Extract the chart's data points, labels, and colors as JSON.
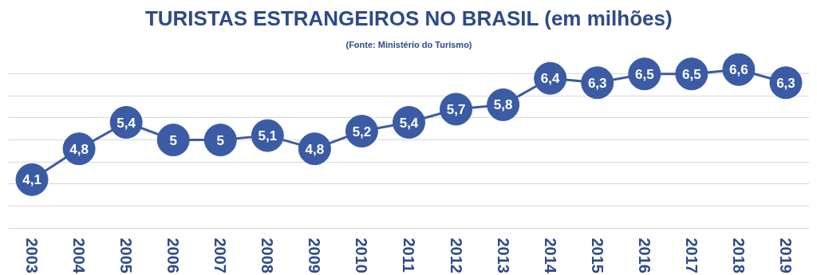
{
  "chart_data": {
    "type": "line",
    "title": "TURISTAS ESTRANGEIROS NO BRASIL (em milhões)",
    "annotations": [
      "(Fonte: Ministério do Turismo)"
    ],
    "categories": [
      "2003",
      "2004",
      "2005",
      "2006",
      "2007",
      "2008",
      "2009",
      "2010",
      "2011",
      "2012",
      "2013",
      "2014",
      "2015",
      "2016",
      "2017",
      "2018",
      "2019"
    ],
    "series": [
      {
        "color": "#3b5ba5",
        "values": [
          4.1,
          4.8,
          5.4,
          5.0,
          5.0,
          5.1,
          4.8,
          5.2,
          5.4,
          5.7,
          5.8,
          6.4,
          6.3,
          6.5,
          6.5,
          6.6,
          6.3
        ],
        "value_labels": [
          "4,1",
          "4,8",
          "5,4",
          "5",
          "5",
          "5,1",
          "4,8",
          "5,2",
          "5,4",
          "5,7",
          "5,8",
          "6,4",
          "6,3",
          "6,5",
          "6,5",
          "6,6",
          "6,3"
        ]
      }
    ],
    "marker": "circle",
    "line_style": "solid",
    "grid": "y",
    "tick_labels": "x"
  }
}
